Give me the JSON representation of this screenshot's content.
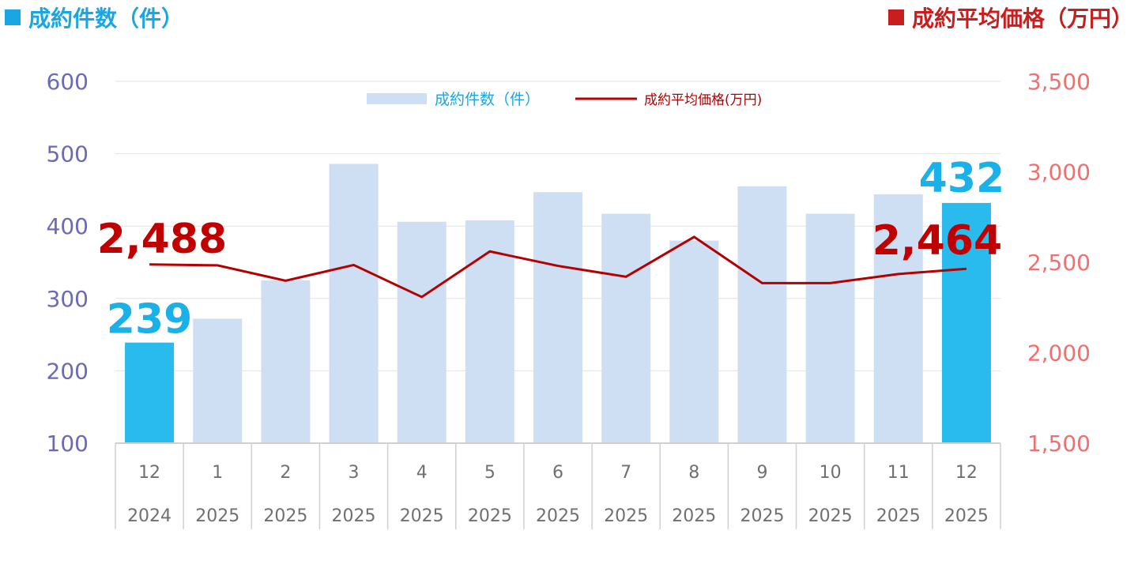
{
  "header": {
    "left_title": "成約件数（件）",
    "right_title": "成約平均価格（万円）",
    "left_color": "#1aa6e4",
    "right_color": "#c81e1e"
  },
  "chart_data": {
    "type": "bar",
    "categories": [
      "12",
      "1",
      "2",
      "3",
      "4",
      "5",
      "6",
      "7",
      "8",
      "9",
      "10",
      "11",
      "12"
    ],
    "years": [
      "2024",
      "2025",
      "2025",
      "2025",
      "2025",
      "2025",
      "2025",
      "2025",
      "2025",
      "2025",
      "2025",
      "2025",
      "2025"
    ],
    "series": [
      {
        "name": "成約件数（件）",
        "type": "bar",
        "axis": "left",
        "values": [
          239,
          272,
          325,
          486,
          406,
          408,
          447,
          417,
          380,
          455,
          417,
          444,
          432
        ],
        "color": "#cfdff3",
        "highlight_color": "#29baee",
        "highlight_indices": [
          0,
          12
        ]
      },
      {
        "name": "成約平均価格(万円)",
        "type": "line",
        "axis": "right",
        "values": [
          2488,
          2483,
          2398,
          2485,
          2308,
          2560,
          2480,
          2420,
          2640,
          2385,
          2385,
          2435,
          2464
        ],
        "color": "#b40000"
      }
    ],
    "left_axis": {
      "min": 100,
      "max": 600,
      "ticks": [
        "100",
        "200",
        "300",
        "400",
        "500",
        "600"
      ]
    },
    "right_axis": {
      "min": 1500,
      "max": 3500,
      "ticks": [
        "1,500",
        "2,000",
        "2,500",
        "3,000",
        "3,500"
      ]
    },
    "annotations": {
      "first_bar": "239",
      "last_bar": "432",
      "first_price": "2,488",
      "last_price": "2,464"
    },
    "grid": true,
    "legend_position": "top-center"
  }
}
